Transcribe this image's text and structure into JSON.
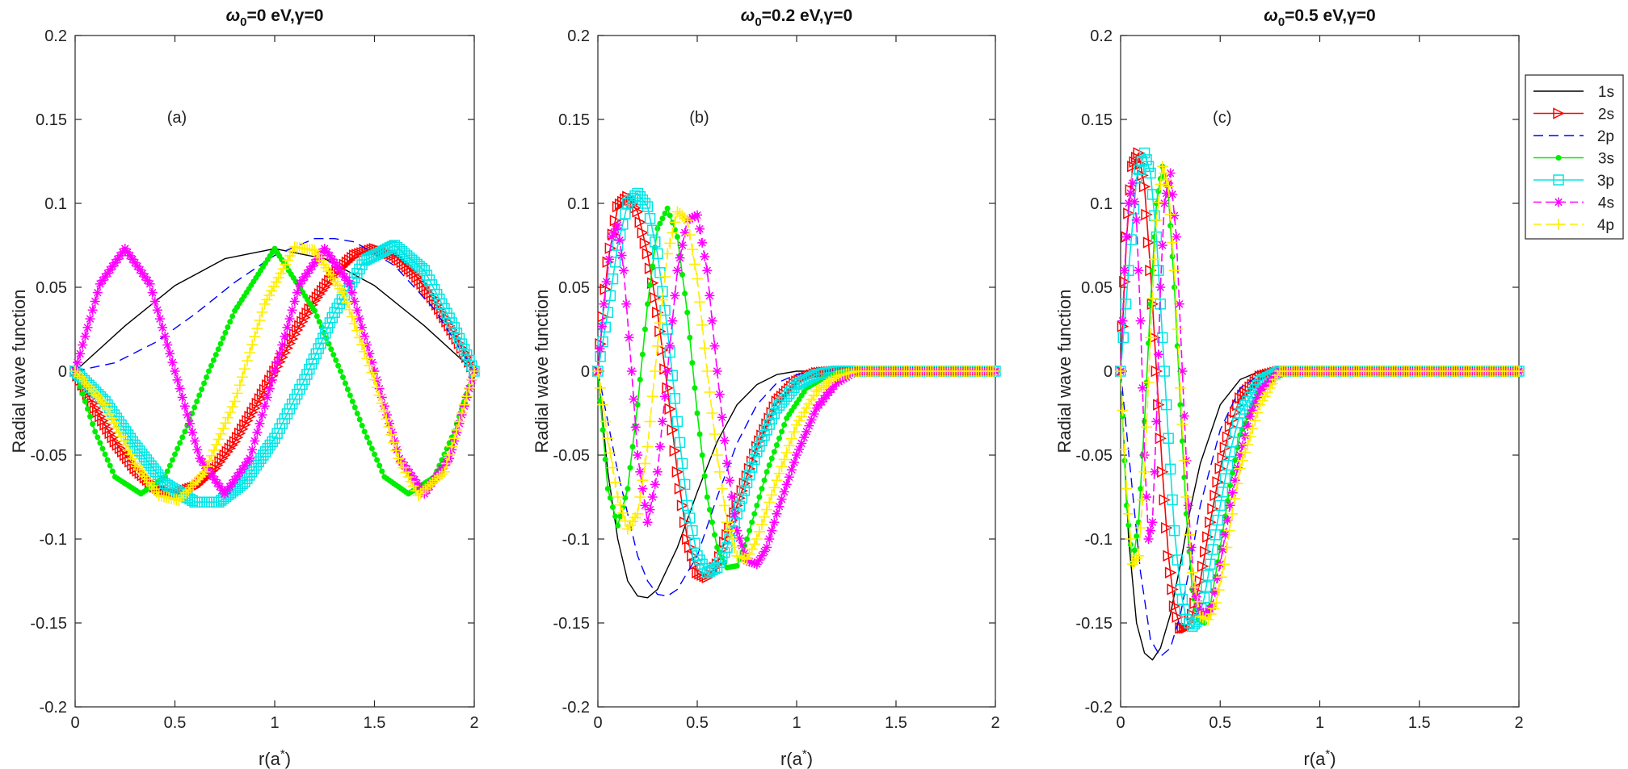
{
  "chart_data": [
    {
      "type": "line",
      "title_prefix": "ω",
      "title_sub": "0",
      "title_suffix": "=0 eV,γ=0",
      "panel_label": "(a)",
      "xlabel": "r(a",
      "xlabel_sup": "*",
      "xlabel_end": ")",
      "ylabel": "Radial wave function",
      "xlim": [
        0,
        2
      ],
      "ylim": [
        -0.2,
        0.2
      ],
      "xticks": [
        0,
        0.5,
        1,
        1.5,
        2
      ],
      "xtick_labels": [
        "0",
        "0.5",
        "1",
        "1.5",
        "2"
      ],
      "yticks": [
        -0.2,
        -0.15,
        -0.1,
        -0.05,
        0,
        0.05,
        0.1,
        0.15,
        0.2
      ],
      "ytick_labels": [
        "-0.2",
        "-0.15",
        "-0.1",
        "-0.05",
        "0",
        "0.05",
        "0.1",
        "0.15",
        "0.2"
      ],
      "series": [
        {
          "name": "1s",
          "x": [
            0,
            0.25,
            0.5,
            0.75,
            1.0,
            1.25,
            1.5,
            1.75,
            2.0
          ],
          "y": [
            0,
            0.027,
            0.051,
            0.067,
            0.073,
            0.067,
            0.051,
            0.027,
            0
          ]
        },
        {
          "name": "2s",
          "x": [
            0,
            0.1,
            0.2,
            0.3,
            0.4,
            0.5,
            0.6,
            0.7,
            0.8,
            0.9,
            1.0,
            1.1,
            1.2,
            1.3,
            1.4,
            1.5,
            1.6,
            1.7,
            1.8,
            1.9,
            2.0
          ],
          "y": [
            0,
            -0.022,
            -0.042,
            -0.058,
            -0.069,
            -0.073,
            -0.069,
            -0.058,
            -0.042,
            -0.022,
            0,
            0.022,
            0.042,
            0.058,
            0.069,
            0.073,
            0.069,
            0.058,
            0.042,
            0.022,
            0
          ]
        },
        {
          "name": "2p",
          "x": [
            0,
            0.2,
            0.4,
            0.6,
            0.8,
            1.0,
            1.2,
            1.3,
            1.4,
            1.6,
            1.8,
            2.0
          ],
          "y": [
            0,
            0.005,
            0.017,
            0.034,
            0.053,
            0.069,
            0.079,
            0.079,
            0.077,
            0.063,
            0.037,
            0
          ]
        },
        {
          "name": "3s",
          "x": [
            0,
            0.1,
            0.2,
            0.33,
            0.45,
            0.55,
            0.67,
            0.8,
            1.0,
            1.2,
            1.33,
            1.45,
            1.55,
            1.67,
            1.8,
            1.9,
            2.0
          ],
          "y": [
            0,
            -0.036,
            -0.063,
            -0.073,
            -0.063,
            -0.036,
            0,
            0.036,
            0.073,
            0.036,
            0,
            -0.036,
            -0.063,
            -0.073,
            -0.063,
            -0.036,
            0
          ]
        },
        {
          "name": "3p",
          "x": [
            0,
            0.15,
            0.3,
            0.45,
            0.6,
            0.72,
            0.85,
            1.0,
            1.15,
            1.3,
            1.45,
            1.6,
            1.75,
            1.9,
            2.0
          ],
          "y": [
            0,
            -0.018,
            -0.044,
            -0.067,
            -0.078,
            -0.078,
            -0.066,
            -0.04,
            -0.005,
            0.035,
            0.066,
            0.075,
            0.06,
            0.026,
            0
          ]
        },
        {
          "name": "4s",
          "x": [
            0,
            0.125,
            0.25,
            0.375,
            0.5,
            0.625,
            0.75,
            0.875,
            1.0,
            1.125,
            1.25,
            1.375,
            1.5,
            1.625,
            1.75,
            1.875,
            2.0
          ],
          "y": [
            0,
            0.052,
            0.073,
            0.052,
            0,
            -0.052,
            -0.073,
            -0.052,
            0,
            0.052,
            0.073,
            0.052,
            0,
            -0.052,
            -0.073,
            -0.052,
            0
          ]
        },
        {
          "name": "4p",
          "x": [
            0,
            0.15,
            0.3,
            0.42,
            0.52,
            0.65,
            0.8,
            0.95,
            1.1,
            1.2,
            1.35,
            1.5,
            1.62,
            1.72,
            1.85,
            2.0
          ],
          "y": [
            0,
            -0.02,
            -0.055,
            -0.074,
            -0.077,
            -0.06,
            -0.018,
            0.04,
            0.074,
            0.072,
            0.045,
            -0.005,
            -0.052,
            -0.074,
            -0.06,
            0
          ]
        }
      ]
    },
    {
      "type": "line",
      "title_prefix": "ω",
      "title_sub": "0",
      "title_suffix": "=0.2 eV,γ=0",
      "panel_label": "(b)",
      "xlabel": "r(a",
      "xlabel_sup": "*",
      "xlabel_end": ")",
      "ylabel": "Radial wave function",
      "xlim": [
        0,
        2
      ],
      "ylim": [
        -0.2,
        0.2
      ],
      "xticks": [
        0,
        0.5,
        1,
        1.5,
        2
      ],
      "xtick_labels": [
        "0",
        "0.5",
        "1",
        "1.5",
        "2"
      ],
      "yticks": [
        -0.2,
        -0.15,
        -0.1,
        -0.05,
        0,
        0.05,
        0.1,
        0.15,
        0.2
      ],
      "ytick_labels": [
        "-0.2",
        "-0.15",
        "-0.1",
        "-0.05",
        "0",
        "0.05",
        "0.1",
        "0.15",
        "0.2"
      ],
      "series": [
        {
          "name": "1s",
          "x": [
            0,
            0.05,
            0.1,
            0.15,
            0.2,
            0.25,
            0.3,
            0.4,
            0.5,
            0.6,
            0.7,
            0.8,
            0.9,
            1.0,
            2.0
          ],
          "y": [
            0,
            -0.06,
            -0.1,
            -0.125,
            -0.134,
            -0.135,
            -0.13,
            -0.105,
            -0.072,
            -0.042,
            -0.02,
            -0.008,
            -0.002,
            0,
            0
          ]
        },
        {
          "name": "2s",
          "x": [
            0,
            0.05,
            0.1,
            0.15,
            0.2,
            0.25,
            0.3,
            0.35,
            0.4,
            0.45,
            0.5,
            0.55,
            0.6,
            0.7,
            0.8,
            0.9,
            1.0,
            1.1,
            1.2,
            2.0
          ],
          "y": [
            0,
            0.065,
            0.098,
            0.104,
            0.095,
            0.07,
            0.035,
            -0.01,
            -0.06,
            -0.1,
            -0.12,
            -0.123,
            -0.115,
            -0.08,
            -0.045,
            -0.018,
            -0.006,
            -0.001,
            0,
            0
          ]
        },
        {
          "name": "2p",
          "x": [
            0,
            0.1,
            0.2,
            0.25,
            0.3,
            0.35,
            0.4,
            0.5,
            0.6,
            0.7,
            0.8,
            0.9,
            1.0,
            1.1,
            2.0
          ],
          "y": [
            0,
            -0.06,
            -0.11,
            -0.125,
            -0.133,
            -0.134,
            -0.13,
            -0.11,
            -0.075,
            -0.043,
            -0.02,
            -0.007,
            -0.002,
            0,
            0
          ]
        },
        {
          "name": "3s",
          "x": [
            0,
            0.05,
            0.1,
            0.15,
            0.2,
            0.25,
            0.3,
            0.35,
            0.4,
            0.45,
            0.5,
            0.55,
            0.6,
            0.65,
            0.7,
            0.75,
            0.85,
            0.95,
            1.05,
            1.15,
            1.25,
            2.0
          ],
          "y": [
            0,
            -0.07,
            -0.092,
            -0.07,
            -0.02,
            0.04,
            0.085,
            0.097,
            0.08,
            0.035,
            -0.025,
            -0.075,
            -0.105,
            -0.117,
            -0.116,
            -0.1,
            -0.06,
            -0.028,
            -0.01,
            -0.003,
            0,
            0
          ]
        },
        {
          "name": "3p",
          "x": [
            0,
            0.05,
            0.1,
            0.15,
            0.2,
            0.25,
            0.3,
            0.35,
            0.4,
            0.45,
            0.5,
            0.55,
            0.6,
            0.65,
            0.7,
            0.8,
            0.9,
            1.0,
            1.1,
            1.2,
            1.3,
            2.0
          ],
          "y": [
            0,
            0.035,
            0.075,
            0.1,
            0.106,
            0.098,
            0.07,
            0.025,
            -0.03,
            -0.08,
            -0.11,
            -0.12,
            -0.117,
            -0.105,
            -0.085,
            -0.048,
            -0.022,
            -0.008,
            -0.002,
            0,
            0,
            0
          ]
        },
        {
          "name": "4s",
          "x": [
            0,
            0.03,
            0.07,
            0.1,
            0.13,
            0.17,
            0.2,
            0.25,
            0.3,
            0.35,
            0.4,
            0.45,
            0.5,
            0.55,
            0.6,
            0.65,
            0.7,
            0.75,
            0.8,
            0.85,
            0.9,
            1.0,
            1.1,
            1.2,
            1.3,
            2.0
          ],
          "y": [
            0,
            0.04,
            0.08,
            0.087,
            0.06,
            0.0,
            -0.05,
            -0.09,
            -0.06,
            0.0,
            0.06,
            0.09,
            0.093,
            0.06,
            0.0,
            -0.055,
            -0.095,
            -0.113,
            -0.115,
            -0.105,
            -0.085,
            -0.05,
            -0.022,
            -0.007,
            0,
            0
          ]
        },
        {
          "name": "4p",
          "x": [
            0,
            0.05,
            0.1,
            0.15,
            0.2,
            0.25,
            0.3,
            0.35,
            0.4,
            0.45,
            0.5,
            0.55,
            0.6,
            0.65,
            0.7,
            0.75,
            0.8,
            0.9,
            1.0,
            1.1,
            1.2,
            1.3,
            2.0
          ],
          "y": [
            0,
            -0.04,
            -0.075,
            -0.094,
            -0.085,
            -0.045,
            0.015,
            0.07,
            0.095,
            0.09,
            0.055,
            0.0,
            -0.05,
            -0.09,
            -0.11,
            -0.112,
            -0.1,
            -0.065,
            -0.032,
            -0.012,
            -0.003,
            0,
            0
          ]
        }
      ]
    },
    {
      "type": "line",
      "title_prefix": "ω",
      "title_sub": "0",
      "title_suffix": "=0.5 eV,γ=0",
      "panel_label": "(c)",
      "xlabel": "r(a",
      "xlabel_sup": "*",
      "xlabel_end": ")",
      "ylabel": "Radial wave function",
      "xlim": [
        0,
        2
      ],
      "ylim": [
        -0.2,
        0.2
      ],
      "xticks": [
        0,
        0.5,
        1,
        1.5,
        2
      ],
      "xtick_labels": [
        "0",
        "0.5",
        "1",
        "1.5",
        "2"
      ],
      "yticks": [
        -0.2,
        -0.15,
        -0.1,
        -0.05,
        0,
        0.05,
        0.1,
        0.15,
        0.2
      ],
      "ytick_labels": [
        "-0.2",
        "-0.15",
        "-0.1",
        "-0.05",
        "0",
        "0.05",
        "0.1",
        "0.15",
        "0.2"
      ],
      "legend": [
        "1s",
        "2s",
        "2p",
        "3s",
        "3p",
        "4s",
        "4p"
      ],
      "legend_position": "top-right",
      "series": [
        {
          "name": "1s",
          "x": [
            0,
            0.04,
            0.08,
            0.12,
            0.16,
            0.2,
            0.25,
            0.3,
            0.35,
            0.4,
            0.5,
            0.6,
            0.7,
            2.0
          ],
          "y": [
            0,
            -0.1,
            -0.15,
            -0.168,
            -0.172,
            -0.165,
            -0.145,
            -0.115,
            -0.082,
            -0.055,
            -0.02,
            -0.005,
            0,
            0
          ]
        },
        {
          "name": "2s",
          "x": [
            0,
            0.03,
            0.06,
            0.09,
            0.12,
            0.15,
            0.18,
            0.21,
            0.24,
            0.27,
            0.3,
            0.33,
            0.36,
            0.4,
            0.45,
            0.5,
            0.55,
            0.6,
            0.7,
            0.8,
            2.0
          ],
          "y": [
            0,
            0.08,
            0.122,
            0.13,
            0.11,
            0.06,
            0.0,
            -0.06,
            -0.11,
            -0.14,
            -0.153,
            -0.153,
            -0.145,
            -0.125,
            -0.09,
            -0.058,
            -0.033,
            -0.016,
            -0.003,
            0,
            0
          ]
        },
        {
          "name": "2p",
          "x": [
            0,
            0.05,
            0.1,
            0.15,
            0.2,
            0.25,
            0.3,
            0.35,
            0.4,
            0.5,
            0.6,
            0.7,
            0.8,
            2.0
          ],
          "y": [
            0,
            -0.06,
            -0.12,
            -0.16,
            -0.17,
            -0.165,
            -0.145,
            -0.115,
            -0.08,
            -0.035,
            -0.01,
            -0.002,
            0,
            0
          ]
        },
        {
          "name": "3s",
          "x": [
            0,
            0.03,
            0.06,
            0.09,
            0.12,
            0.15,
            0.18,
            0.21,
            0.24,
            0.27,
            0.3,
            0.33,
            0.36,
            0.39,
            0.42,
            0.45,
            0.5,
            0.55,
            0.6,
            0.7,
            0.8,
            2.0
          ],
          "y": [
            0,
            -0.08,
            -0.115,
            -0.09,
            -0.03,
            0.04,
            0.1,
            0.122,
            0.105,
            0.05,
            -0.02,
            -0.085,
            -0.13,
            -0.148,
            -0.15,
            -0.14,
            -0.105,
            -0.068,
            -0.038,
            -0.01,
            0,
            0
          ]
        },
        {
          "name": "3p",
          "x": [
            0,
            0.04,
            0.08,
            0.12,
            0.15,
            0.18,
            0.21,
            0.24,
            0.27,
            0.3,
            0.33,
            0.36,
            0.39,
            0.42,
            0.45,
            0.5,
            0.55,
            0.6,
            0.7,
            0.8,
            2.0
          ],
          "y": [
            0,
            0.06,
            0.115,
            0.13,
            0.118,
            0.08,
            0.02,
            -0.04,
            -0.095,
            -0.13,
            -0.148,
            -0.152,
            -0.148,
            -0.135,
            -0.115,
            -0.08,
            -0.048,
            -0.025,
            -0.006,
            0,
            0
          ]
        },
        {
          "name": "4s",
          "x": [
            0,
            0.02,
            0.04,
            0.06,
            0.08,
            0.1,
            0.12,
            0.14,
            0.16,
            0.18,
            0.2,
            0.22,
            0.25,
            0.28,
            0.31,
            0.34,
            0.37,
            0.4,
            0.43,
            0.46,
            0.5,
            0.55,
            0.6,
            0.65,
            0.7,
            0.8,
            2.0
          ],
          "y": [
            0,
            0.06,
            0.1,
            0.112,
            0.09,
            0.03,
            -0.05,
            -0.1,
            -0.09,
            -0.03,
            0.05,
            0.1,
            0.118,
            0.08,
            0.0,
            -0.08,
            -0.13,
            -0.143,
            -0.145,
            -0.14,
            -0.115,
            -0.08,
            -0.05,
            -0.027,
            -0.012,
            0,
            0
          ]
        },
        {
          "name": "4p",
          "x": [
            0,
            0.03,
            0.06,
            0.09,
            0.12,
            0.15,
            0.18,
            0.21,
            0.24,
            0.27,
            0.3,
            0.33,
            0.36,
            0.4,
            0.44,
            0.48,
            0.52,
            0.56,
            0.6,
            0.7,
            0.8,
            2.0
          ],
          "y": [
            0,
            -0.07,
            -0.115,
            -0.11,
            -0.06,
            0.02,
            0.09,
            0.122,
            0.11,
            0.06,
            -0.01,
            -0.075,
            -0.12,
            -0.146,
            -0.148,
            -0.138,
            -0.115,
            -0.085,
            -0.058,
            -0.02,
            0,
            0
          ]
        }
      ]
    }
  ],
  "styles": {
    "1s": {
      "color": "#000000",
      "dash": "",
      "marker": "none"
    },
    "2s": {
      "color": "#ff0000",
      "dash": "",
      "marker": "triangle-right"
    },
    "2p": {
      "color": "#0000ff",
      "dash": "12,7",
      "marker": "none"
    },
    "3s": {
      "color": "#00ee00",
      "dash": "",
      "marker": "dot"
    },
    "3p": {
      "color": "#00e5e5",
      "dash": "",
      "marker": "square"
    },
    "4s": {
      "color": "#ff00ff",
      "dash": "10,5",
      "marker": "asterisk"
    },
    "4p": {
      "color": "#ffee00",
      "dash": "10,5",
      "marker": "plus"
    }
  }
}
